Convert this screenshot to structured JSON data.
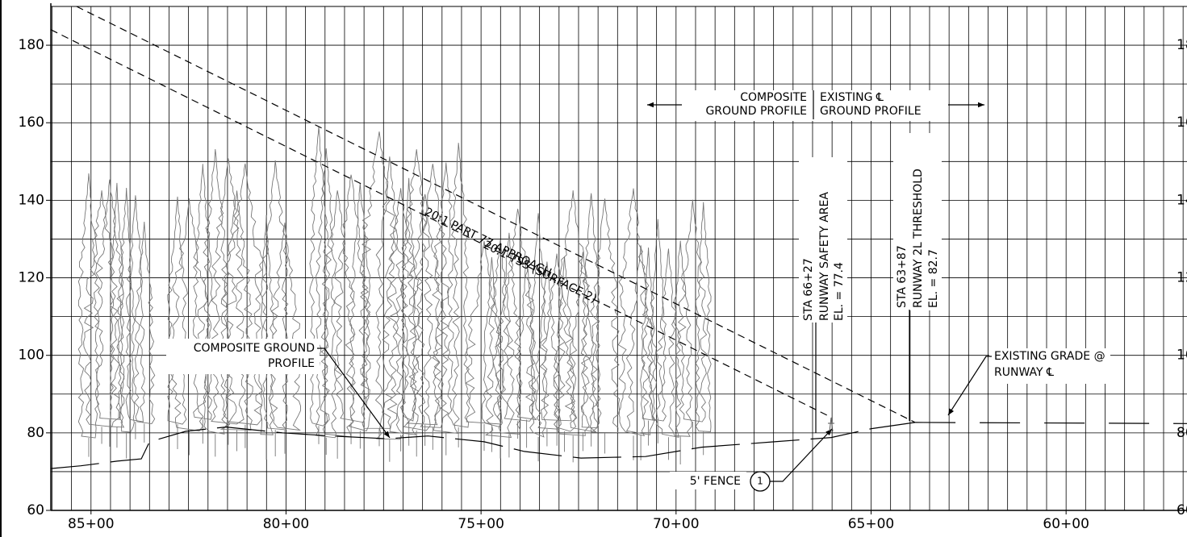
{
  "chart_data": {
    "type": "profile",
    "xlim": [
      8603,
      5690
    ],
    "ylim": [
      60,
      190
    ],
    "xticks": [
      {
        "value": 8500,
        "label": "85+00"
      },
      {
        "value": 8000,
        "label": "80+00"
      },
      {
        "value": 7500,
        "label": "75+00"
      },
      {
        "value": 7000,
        "label": "70+00"
      },
      {
        "value": 6500,
        "label": "65+00"
      },
      {
        "value": 6000,
        "label": "60+00"
      }
    ],
    "yticks": [
      60,
      80,
      100,
      120,
      140,
      160,
      180
    ],
    "grid": true,
    "minor_grid": {
      "x": 50,
      "y": 10
    },
    "series": [
      {
        "name": "20:1 TSS (SURFACE 2)",
        "color": "#000000",
        "dash": "9 6",
        "x": [
          8537,
          6387
        ],
        "values": [
          190,
          82.7
        ]
      },
      {
        "name": "20:1 PART 77 APPROACH",
        "color": "#000000",
        "dash": "9 6",
        "x": [
          8603,
          6602
        ],
        "values": [
          184,
          84
        ]
      },
      {
        "name": "COMPOSITE GROUND PROFILE",
        "color": "#000000",
        "dash": "60 14",
        "x": [
          8603,
          8526,
          8433,
          8371,
          8350,
          8257,
          8154,
          8009,
          7885,
          7740,
          7636,
          7492,
          7389,
          7244,
          7078,
          6934,
          6748,
          6602,
          6499,
          6387
        ],
        "values": [
          70.8,
          71.5,
          72.7,
          73.3,
          77.7,
          80.4,
          81.5,
          80,
          79.2,
          78.5,
          79.2,
          77.7,
          75.2,
          73.5,
          73.9,
          76.3,
          77.7,
          78.8,
          81.1,
          82.7
        ]
      },
      {
        "name": "EXISTING GRADE @ RUNWAY CL",
        "color": "#000000",
        "dash": "50 30",
        "x": [
          6387,
          5690
        ],
        "values": [
          82.7,
          82.4
        ]
      }
    ],
    "labels": {
      "tss": "20:1 TSS (SURFACE 2)",
      "part77": "20:1 PART 77 APPROACH",
      "composite1": "COMPOSITE GROUND",
      "composite2": "PROFILE",
      "existing1": "EXISTING GRADE @",
      "existing2": "RUNWAY ℄",
      "header_left1": "COMPOSITE",
      "header_left2": "GROUND PROFILE",
      "header_right1": "EXISTING ℄",
      "header_right2": "GROUND PROFILE",
      "sta1_a": "STA 66+27",
      "sta1_b": "RUNWAY SAFETY AREA",
      "sta1_c": "EL. = 77.4",
      "sta2_a": "STA 63+87",
      "sta2_b": "RUNWAY 2L THRESHOLD",
      "sta2_c": "EL. = 82.7",
      "fence": "5' FENCE",
      "fence_num": "1"
    }
  }
}
